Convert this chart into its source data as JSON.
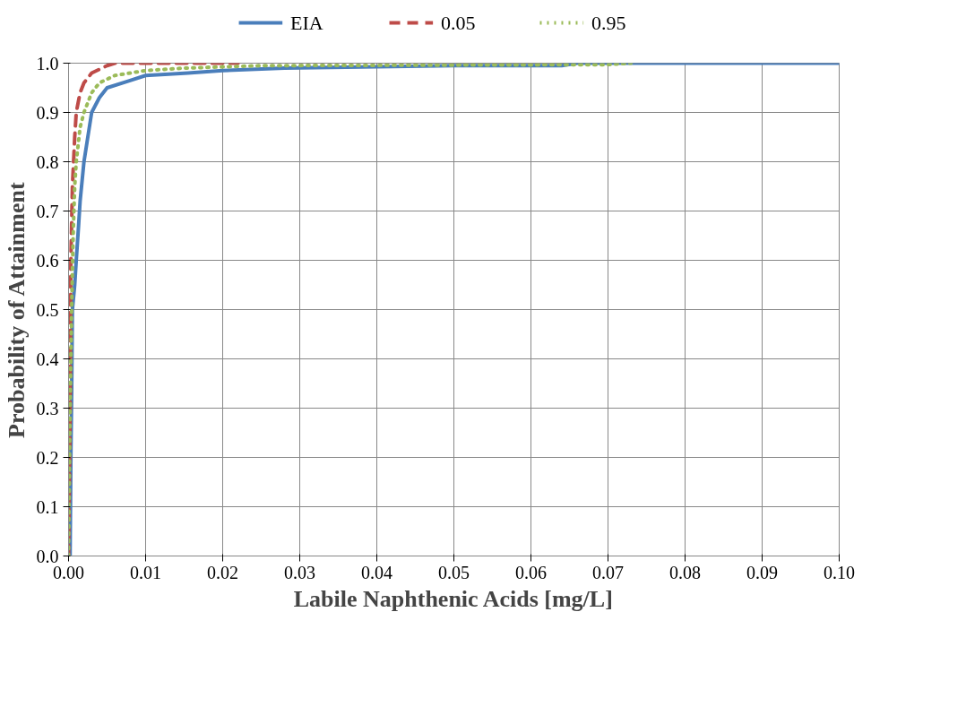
{
  "chart_data": {
    "type": "line",
    "xlabel": "Labile Naphthenic Acids [mg/L]",
    "ylabel": "Probability of Attainment",
    "xlim": [
      0,
      0.1
    ],
    "ylim": [
      0,
      1
    ],
    "xticks": [
      {
        "value": 0,
        "label": "0.00"
      },
      {
        "value": 0.01,
        "label": "0.01"
      },
      {
        "value": 0.02,
        "label": "0.02"
      },
      {
        "value": 0.03,
        "label": "0.03"
      },
      {
        "value": 0.04,
        "label": "0.04"
      },
      {
        "value": 0.05,
        "label": "0.05"
      },
      {
        "value": 0.06,
        "label": "0.06"
      },
      {
        "value": 0.07,
        "label": "0.07"
      },
      {
        "value": 0.08,
        "label": "0.08"
      },
      {
        "value": 0.09,
        "label": "0.09"
      },
      {
        "value": 0.1,
        "label": "0.10"
      }
    ],
    "yticks": [
      {
        "value": 0,
        "label": "0.0"
      },
      {
        "value": 0.1,
        "label": "0.1"
      },
      {
        "value": 0.2,
        "label": "0.2"
      },
      {
        "value": 0.3,
        "label": "0.3"
      },
      {
        "value": 0.4,
        "label": "0.4"
      },
      {
        "value": 0.5,
        "label": "0.5"
      },
      {
        "value": 0.6,
        "label": "0.6"
      },
      {
        "value": 0.7,
        "label": "0.7"
      },
      {
        "value": 0.8,
        "label": "0.8"
      },
      {
        "value": 0.9,
        "label": "0.9"
      },
      {
        "value": 1,
        "label": "1.0"
      }
    ],
    "grid": true,
    "legend": "top",
    "marker": "none",
    "series": [
      {
        "name": "EIA",
        "color": "#4a7ebb",
        "line_style": "solid",
        "x": [
          0.0002,
          0.0003,
          0.0004,
          0.0005,
          0.0008,
          0.001,
          0.0013,
          0.0015,
          0.002,
          0.0024,
          0.003,
          0.004,
          0.005,
          0.0078,
          0.01,
          0.0155,
          0.02,
          0.028,
          0.05,
          0.064,
          0.066,
          0.1
        ],
        "values": [
          0,
          0.2,
          0.33,
          0.5,
          0.55,
          0.6,
          0.67,
          0.72,
          0.8,
          0.84,
          0.9,
          0.93,
          0.95,
          0.964,
          0.975,
          0.98,
          0.985,
          0.99,
          0.995,
          0.995,
          1,
          1
        ]
      },
      {
        "name": "0.05",
        "color": "#be4b48",
        "line_style": "dashed",
        "x": [
          0,
          0.0002,
          0.0003,
          0.0005,
          0.0008,
          0.001,
          0.0015,
          0.002,
          0.003,
          0.005,
          0.006,
          0.022
        ],
        "values": [
          0,
          0.3,
          0.6,
          0.75,
          0.85,
          0.9,
          0.94,
          0.96,
          0.98,
          0.995,
          1,
          1
        ]
      },
      {
        "name": "0.95",
        "color": "#9bbb59",
        "line_style": "dotted",
        "x": [
          0,
          0.0002,
          0.0004,
          0.0006,
          0.0008,
          0.001,
          0.0015,
          0.002,
          0.003,
          0.004,
          0.006,
          0.01,
          0.015,
          0.025,
          0.07,
          0.073
        ],
        "values": [
          0,
          0.3,
          0.5,
          0.65,
          0.75,
          0.8,
          0.87,
          0.9,
          0.94,
          0.96,
          0.975,
          0.985,
          0.99,
          0.995,
          0.997,
          1
        ]
      }
    ]
  }
}
